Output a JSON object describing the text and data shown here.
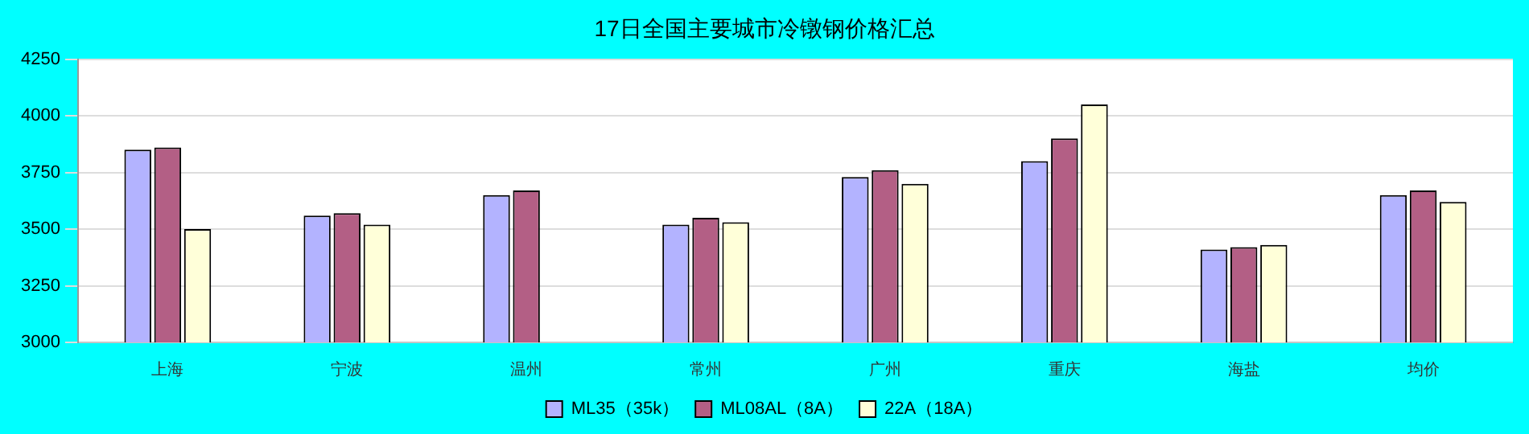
{
  "chart_data": {
    "type": "bar",
    "title": "17日全国主要城市冷镦钢价格汇总",
    "categories": [
      "上海",
      "宁波",
      "温州",
      "常州",
      "广州",
      "重庆",
      "海盐",
      "均价"
    ],
    "series": [
      {
        "name": "ML35（35k）",
        "color": "#b3b3ff",
        "values": [
          3850,
          3560,
          3650,
          3520,
          3730,
          3800,
          3410,
          3650
        ]
      },
      {
        "name": "ML08AL（8A）",
        "color": "#b35f85",
        "values": [
          3860,
          3570,
          3670,
          3550,
          3760,
          3900,
          3420,
          3670
        ]
      },
      {
        "name": "22A（18A）",
        "color": "#ffffd9",
        "values": [
          3500,
          3520,
          null,
          3530,
          3700,
          4050,
          3430,
          3620
        ]
      }
    ],
    "ylim": [
      3000,
      4250
    ],
    "yticks": [
      3000,
      3250,
      3500,
      3750,
      4000,
      4250
    ],
    "grid": "y",
    "legend": "bottom"
  }
}
